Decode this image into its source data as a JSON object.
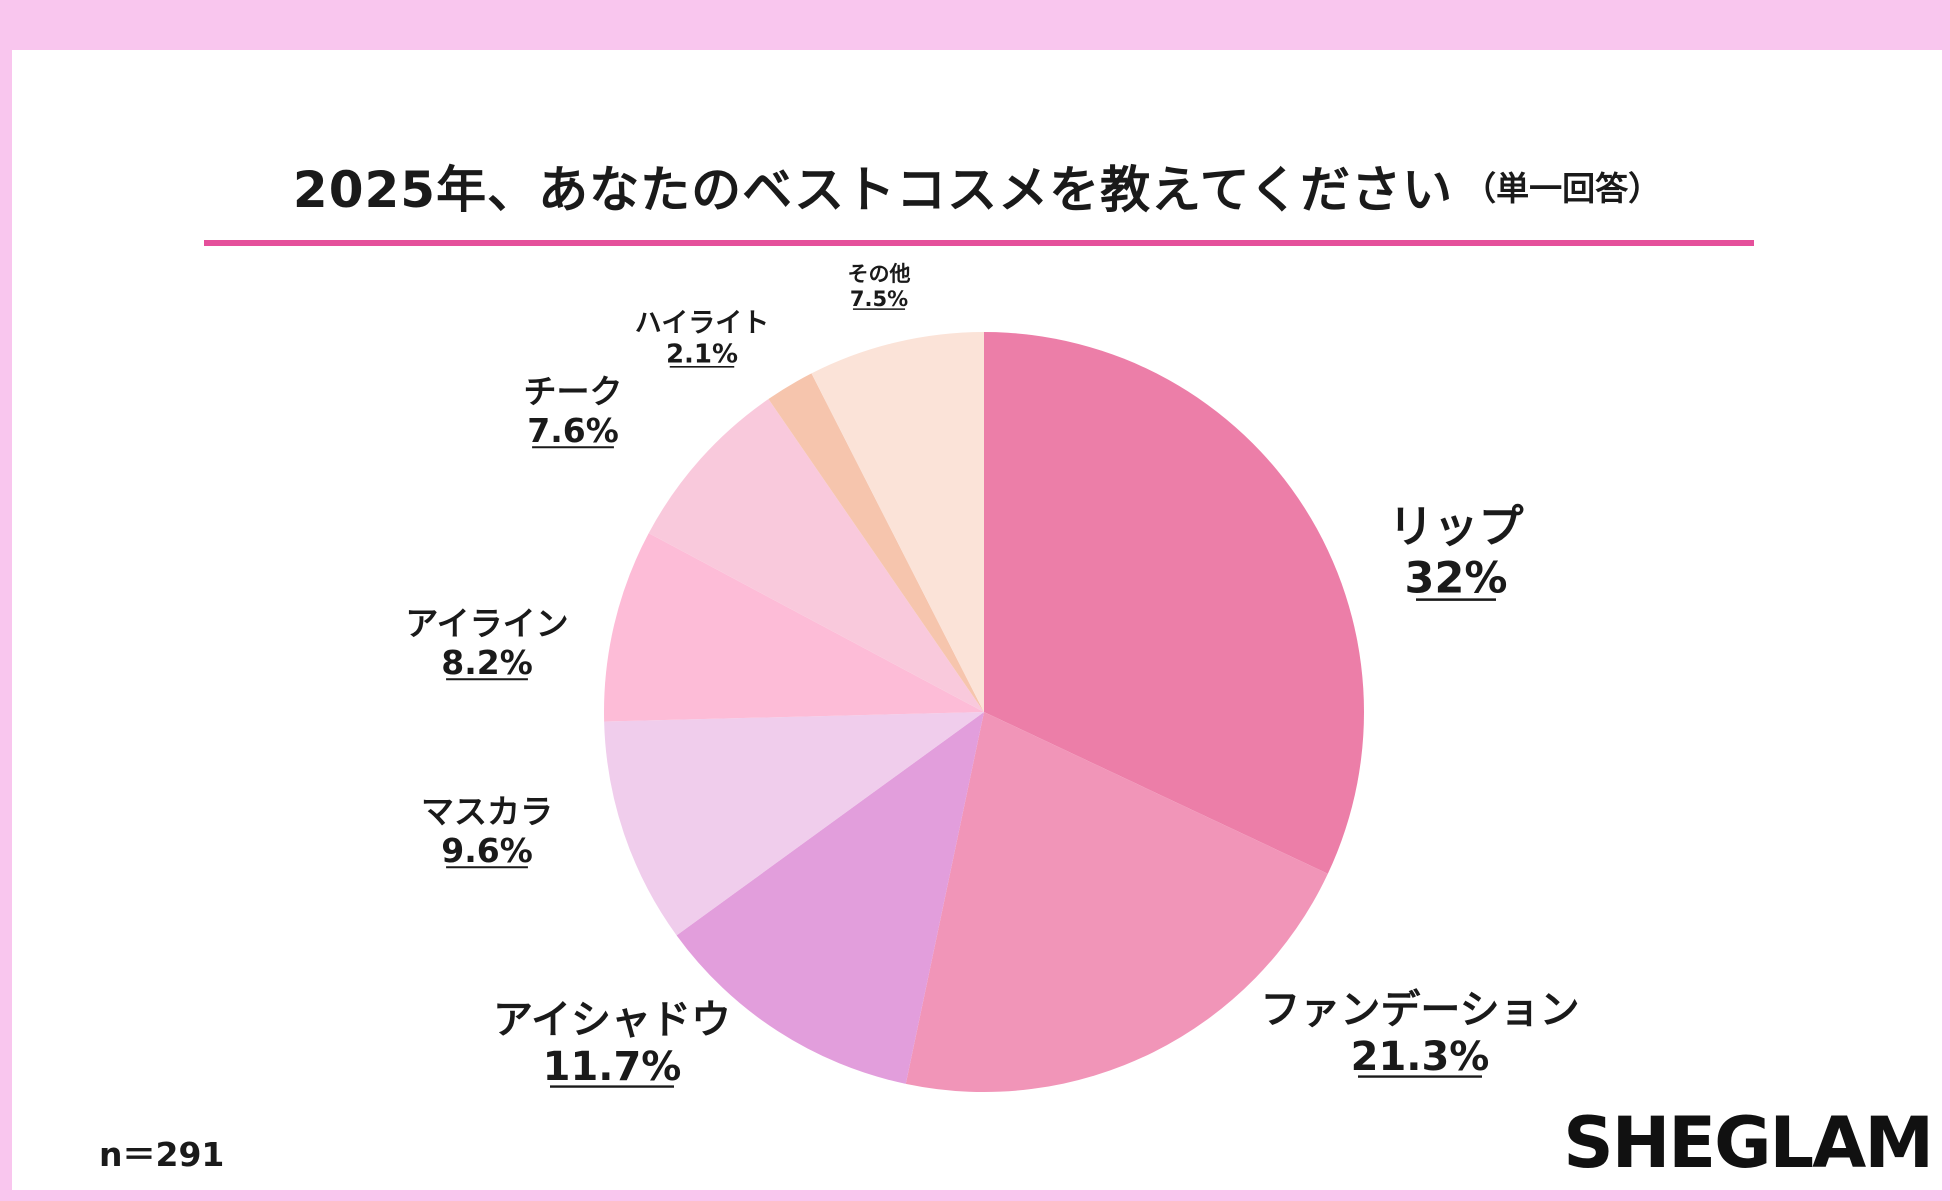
{
  "title": {
    "main": "2025年、あなたのベストコスメを教えてください",
    "sub": "（単一回答）"
  },
  "colors": {
    "frame": "#f9c6ee",
    "accent_rule": "#e5509b"
  },
  "chart_data": {
    "type": "pie",
    "start_angle": "12 o'clock",
    "direction": "clockwise",
    "slices": [
      {
        "label": "リップ",
        "value_label": "32%",
        "value": 32,
        "color": "#ec7ea8"
      },
      {
        "label": "ファンデーション",
        "value_label": "21.3%",
        "value": 21.3,
        "color": "#f195b8"
      },
      {
        "label": "アイシャドウ",
        "value_label": "11.7%",
        "value": 11.7,
        "color": "#e29edc"
      },
      {
        "label": "マスカラ",
        "value_label": "9.6%",
        "value": 9.6,
        "color": "#f0cdec"
      },
      {
        "label": "アイライン",
        "value_label": "8.2%",
        "value": 8.2,
        "color": "#fdbcd7"
      },
      {
        "label": "チーク",
        "value_label": "7.6%",
        "value": 7.6,
        "color": "#f9c9dc"
      },
      {
        "label": "ハイライト",
        "value_label": "2.1%",
        "value": 2.1,
        "color": "#f6c5ad"
      },
      {
        "label": "その他",
        "value_label": "7.5%",
        "value": 7.5,
        "color": "#fbe3d8"
      }
    ]
  },
  "footer": {
    "sample_size": "n＝291",
    "brand": "SHEGLAM"
  }
}
